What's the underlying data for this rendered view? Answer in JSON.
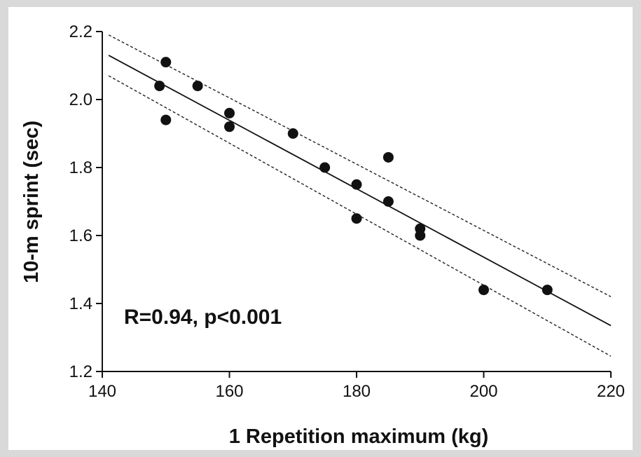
{
  "chart_data": {
    "type": "scatter",
    "xlabel": "1 Repetition maximum (kg)",
    "ylabel": "10-m sprint (sec)",
    "xlim": [
      140,
      220
    ],
    "ylim": [
      1.2,
      2.2
    ],
    "x_ticks": [
      140,
      160,
      180,
      200,
      220
    ],
    "x_tick_labels": [
      "140",
      "160",
      "180",
      "200",
      "220"
    ],
    "y_ticks": [
      1.2,
      1.4,
      1.6,
      1.8,
      2.0,
      2.2
    ],
    "y_tick_labels": [
      "1.2",
      "1.4",
      "1.6",
      "1.8",
      "2.0",
      "2.2"
    ],
    "annotation": "R=0.94, p<0.001",
    "grid": false,
    "points": [
      {
        "x": 149,
        "y": 2.04
      },
      {
        "x": 150,
        "y": 2.11
      },
      {
        "x": 150,
        "y": 1.94
      },
      {
        "x": 155,
        "y": 2.04
      },
      {
        "x": 160,
        "y": 1.96
      },
      {
        "x": 160,
        "y": 1.92
      },
      {
        "x": 170,
        "y": 1.9
      },
      {
        "x": 175,
        "y": 1.8
      },
      {
        "x": 180,
        "y": 1.75
      },
      {
        "x": 180,
        "y": 1.65
      },
      {
        "x": 185,
        "y": 1.83
      },
      {
        "x": 185,
        "y": 1.7
      },
      {
        "x": 190,
        "y": 1.62
      },
      {
        "x": 190,
        "y": 1.6
      },
      {
        "x": 200,
        "y": 1.44
      },
      {
        "x": 210,
        "y": 1.44
      }
    ],
    "regression_line": {
      "x": [
        141,
        220
      ],
      "y": [
        2.13,
        1.335
      ]
    },
    "confidence_upper": {
      "x": [
        141,
        220
      ],
      "y": [
        2.19,
        1.42
      ]
    },
    "confidence_lower": {
      "x": [
        141,
        220
      ],
      "y": [
        2.07,
        1.245
      ]
    }
  }
}
